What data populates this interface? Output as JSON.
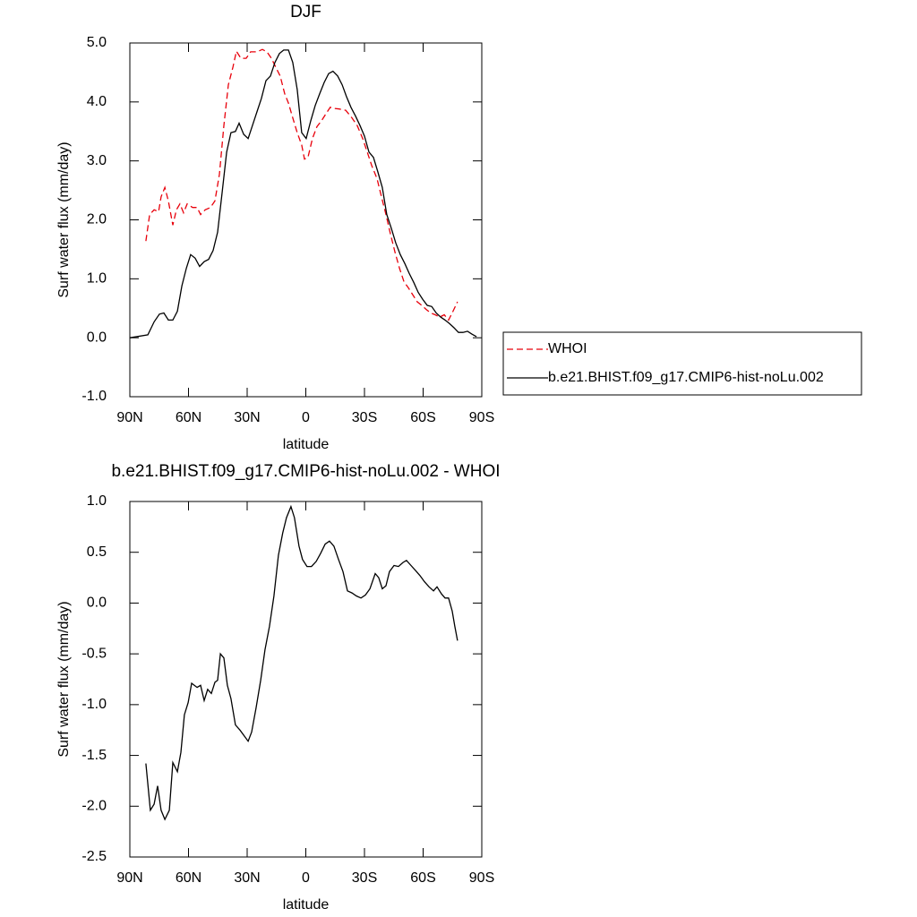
{
  "chart_data": [
    {
      "type": "line",
      "title": "DJF",
      "xlabel": "latitude",
      "ylabel": "Surf water flux (mm/day)",
      "xlim": [
        90,
        -90
      ],
      "xticks": [
        {
          "value": 90,
          "label": "90N"
        },
        {
          "value": 60,
          "label": "60N"
        },
        {
          "value": 30,
          "label": "30N"
        },
        0,
        {
          "value": -30,
          "label": "30S"
        },
        {
          "value": -60,
          "label": "60S"
        },
        {
          "value": -90,
          "label": "90S"
        }
      ],
      "ylim": [
        -1,
        5
      ],
      "yticks": [
        {
          "value": 5,
          "label": "5.0"
        },
        {
          "value": 4,
          "label": "4.0"
        },
        {
          "value": 3,
          "label": "3.0"
        },
        {
          "value": 2,
          "label": "2.0"
        },
        {
          "value": 1,
          "label": "1.0"
        },
        {
          "value": 0,
          "label": "0.0"
        },
        {
          "value": -1,
          "label": "-1.0"
        }
      ],
      "legend": "right",
      "series": [
        {
          "name": "WHOI",
          "color": "#e8000b",
          "dash": true,
          "x": [
            81.8,
            79.9,
            77.6,
            75.3,
            74,
            72.1,
            70.3,
            68,
            66.2,
            64.4,
            62.5,
            60.7,
            57.9,
            55.6,
            53.8,
            51.5,
            48.8,
            46.5,
            44.2,
            41.9,
            39.6,
            37.3,
            35.5,
            33.2,
            30.5,
            28.2,
            25,
            22.2,
            19.9,
            17.6,
            15.4,
            13.1,
            10.8,
            8.9,
            6.7,
            4.4,
            2.1,
            0.7,
            -1.1,
            -3.4,
            -5.7,
            -8,
            -10.3,
            -12.5,
            -14.8,
            -17.1,
            -20.4,
            -23.6,
            -26.3,
            -29.1,
            -31.4,
            -33.7,
            -36.4,
            -38.7,
            -41,
            -43.3,
            -45.6,
            -47.9,
            -50.2,
            -52.4,
            -54.7,
            -57,
            -59.3,
            -61.6,
            -63.9,
            -66.2,
            -68.5,
            -70.8,
            -73,
            -75.3,
            -77.6
          ],
          "values": [
            1.64,
            2.09,
            2.17,
            2.14,
            2.39,
            2.55,
            2.32,
            1.91,
            2.17,
            2.27,
            2.12,
            2.27,
            2.21,
            2.21,
            2.09,
            2.17,
            2.21,
            2.32,
            2.77,
            3.6,
            4.29,
            4.59,
            4.86,
            4.74,
            4.74,
            4.85,
            4.85,
            4.89,
            4.85,
            4.74,
            4.59,
            4.44,
            4.14,
            3.98,
            3.73,
            3.48,
            3.27,
            3.03,
            3.06,
            3.38,
            3.58,
            3.68,
            3.8,
            3.91,
            3.89,
            3.88,
            3.86,
            3.73,
            3.6,
            3.38,
            3.15,
            2.92,
            2.7,
            2.39,
            2.09,
            1.76,
            1.45,
            1.18,
            0.95,
            0.85,
            0.73,
            0.61,
            0.55,
            0.48,
            0.42,
            0.39,
            0.35,
            0.39,
            0.3,
            0.45,
            0.61
          ]
        },
        {
          "name": "b.e21.BHIST.f09_g17.CMIP6-hist-noLu.002",
          "color": "#000000",
          "dash": false,
          "x": [
            90,
            80.8,
            77.6,
            74.9,
            72.6,
            70.3,
            68,
            65.7,
            63.4,
            61.1,
            58.9,
            56.6,
            54.3,
            52,
            49.7,
            47.4,
            45.1,
            42.8,
            40.5,
            38.3,
            36,
            34.1,
            31.8,
            29.5,
            27.3,
            25,
            22.7,
            20.4,
            18.1,
            15.8,
            13.5,
            11.3,
            8.9,
            6.7,
            4.4,
            2.1,
            -0.2,
            -2.5,
            -4.8,
            -7.1,
            -9.4,
            -11.7,
            -13.9,
            -16.3,
            -18.6,
            -20.8,
            -23.1,
            -25.4,
            -27.7,
            -30,
            -32.3,
            -34.6,
            -36.8,
            -39.1,
            -41.4,
            -43.7,
            -46,
            -48.3,
            -50.6,
            -52.9,
            -55.2,
            -57.5,
            -59.8,
            -62.1,
            -64.4,
            -66.7,
            -69,
            -71.2,
            -73.5,
            -75.8,
            -78.1,
            -80.4,
            -82.7,
            -85,
            -87.3
          ],
          "values": [
            0,
            0.05,
            0.27,
            0.4,
            0.42,
            0.3,
            0.3,
            0.45,
            0.88,
            1.18,
            1.41,
            1.35,
            1.21,
            1.29,
            1.33,
            1.48,
            1.79,
            2.47,
            3.15,
            3.48,
            3.5,
            3.64,
            3.45,
            3.38,
            3.6,
            3.83,
            4.06,
            4.36,
            4.44,
            4.67,
            4.82,
            4.88,
            4.88,
            4.67,
            4.21,
            3.48,
            3.38,
            3.68,
            3.94,
            4.14,
            4.33,
            4.48,
            4.52,
            4.44,
            4.29,
            4.09,
            3.91,
            3.76,
            3.6,
            3.42,
            3.15,
            3.06,
            2.82,
            2.55,
            2.09,
            1.86,
            1.61,
            1.41,
            1.26,
            1.09,
            0.94,
            0.77,
            0.65,
            0.55,
            0.53,
            0.42,
            0.35,
            0.3,
            0.24,
            0.17,
            0.09,
            0.09,
            0.11,
            0.06,
            0.02
          ]
        }
      ]
    },
    {
      "type": "line",
      "title": "b.e21.BHIST.f09_g17.CMIP6-hist-noLu.002 - WHOI",
      "xlabel": "latitude",
      "ylabel": "Surf water flux (mm/day)",
      "xlim": [
        90,
        -90
      ],
      "xticks": [
        {
          "value": 90,
          "label": "90N"
        },
        {
          "value": 60,
          "label": "60N"
        },
        {
          "value": 30,
          "label": "30N"
        },
        0,
        {
          "value": -30,
          "label": "30S"
        },
        {
          "value": -60,
          "label": "60S"
        },
        {
          "value": -90,
          "label": "90S"
        }
      ],
      "ylim": [
        -2.5,
        1
      ],
      "yticks": [
        {
          "value": 1,
          "label": "1.0"
        },
        {
          "value": 0.5,
          "label": "0.5"
        },
        {
          "value": 0,
          "label": "0.0"
        },
        {
          "value": -0.5,
          "label": "-0.5"
        },
        {
          "value": -1,
          "label": "-1.0"
        },
        {
          "value": -1.5,
          "label": "-1.5"
        },
        {
          "value": -2,
          "label": "-2.0"
        },
        {
          "value": -2.5,
          "label": "-2.5"
        }
      ],
      "color": "#000000",
      "x": [
        81.8,
        79.5,
        77.6,
        75.8,
        74,
        72.1,
        69.8,
        68,
        65.7,
        63.9,
        62.1,
        60.2,
        58.4,
        55.6,
        53.8,
        52,
        50.2,
        48.3,
        46.5,
        45.1,
        43.7,
        41.9,
        40.1,
        38.3,
        36,
        33.7,
        31.4,
        29.5,
        27.7,
        25.4,
        23.1,
        20.9,
        18.6,
        16.3,
        14,
        11.8,
        9.9,
        7.6,
        5.8,
        3.5,
        1.7,
        -0.6,
        -2.9,
        -5.3,
        -7.6,
        -9.9,
        -12.1,
        -14.4,
        -16.7,
        -19,
        -21.3,
        -23.6,
        -25.9,
        -28.2,
        -30.5,
        -32.8,
        -35.5,
        -37.3,
        -39.1,
        -41,
        -42.8,
        -45.1,
        -47.4,
        -49.7,
        -51.5,
        -53.8,
        -56.1,
        -58.4,
        -60.7,
        -63,
        -65.3,
        -67.1,
        -69.4,
        -71.2,
        -73,
        -74.9,
        -76.2,
        -77.6
      ],
      "values": [
        -1.58,
        -2.04,
        -1.98,
        -1.8,
        -2.04,
        -2.13,
        -2.04,
        -1.57,
        -1.66,
        -1.47,
        -1.1,
        -0.98,
        -0.79,
        -0.83,
        -0.81,
        -0.96,
        -0.85,
        -0.89,
        -0.78,
        -0.76,
        -0.5,
        -0.54,
        -0.81,
        -0.94,
        -1.2,
        -1.25,
        -1.31,
        -1.36,
        -1.27,
        -1.03,
        -0.76,
        -0.46,
        -0.23,
        0.07,
        0.47,
        0.69,
        0.84,
        0.95,
        0.84,
        0.56,
        0.43,
        0.36,
        0.36,
        0.41,
        0.49,
        0.58,
        0.61,
        0.56,
        0.43,
        0.31,
        0.12,
        0.1,
        0.07,
        0.05,
        0.08,
        0.14,
        0.29,
        0.25,
        0.14,
        0.17,
        0.31,
        0.37,
        0.36,
        0.4,
        0.42,
        0.37,
        0.32,
        0.27,
        0.21,
        0.16,
        0.12,
        0.16,
        0.09,
        0.05,
        0.05,
        -0.08,
        -0.23,
        -0.37
      ]
    }
  ]
}
